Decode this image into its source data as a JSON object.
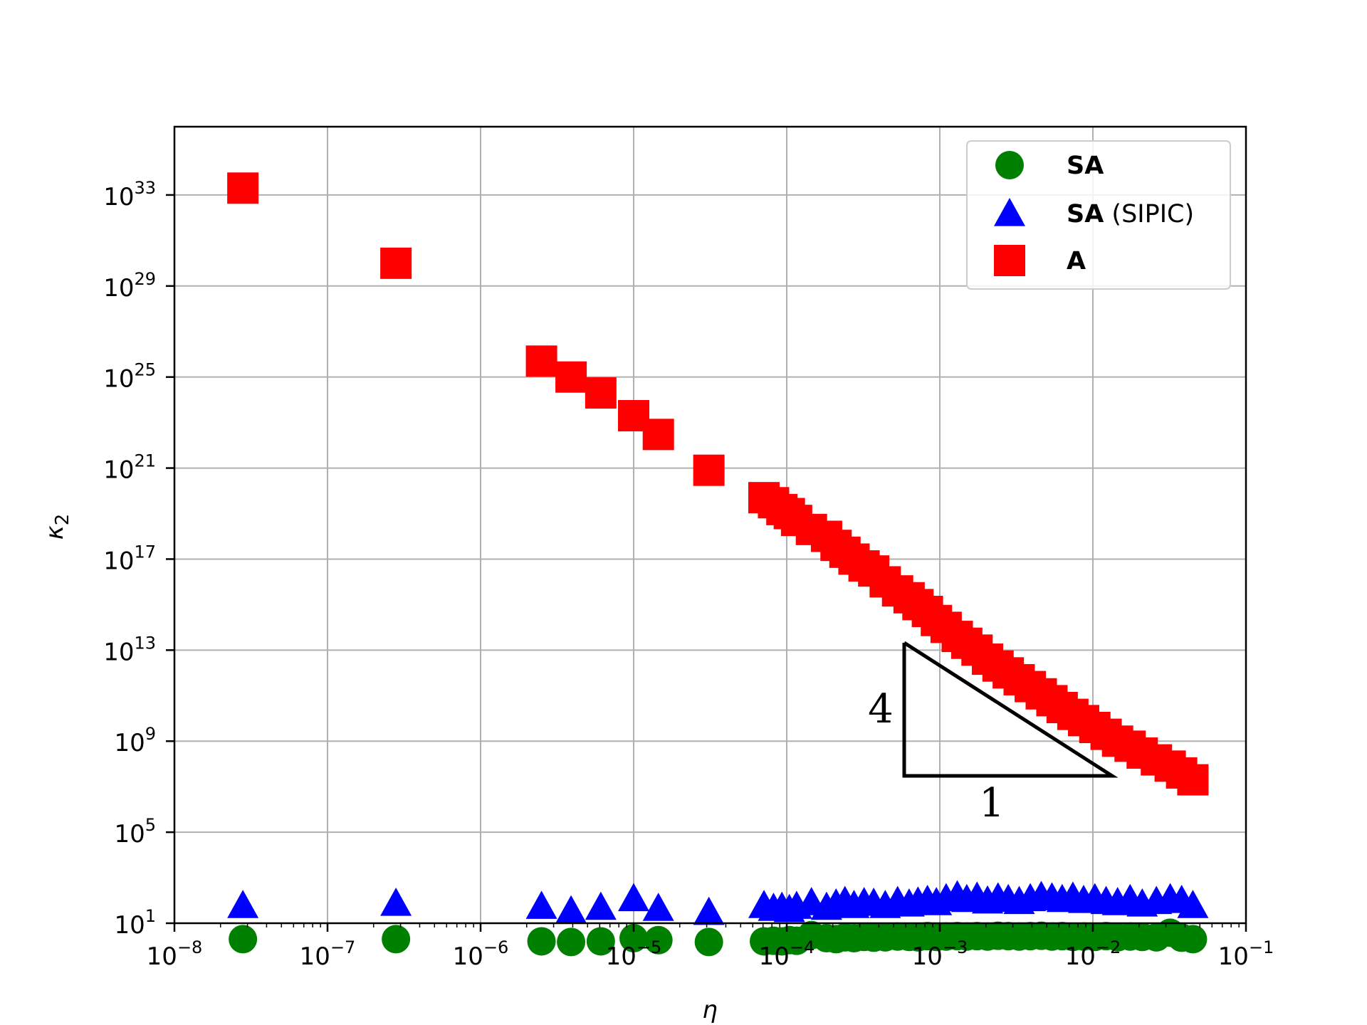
{
  "chart_data": {
    "type": "scatter",
    "xlabel": "η",
    "ylabel": "κ",
    "ylabel_sub": "2",
    "xscale": "log",
    "yscale": "log",
    "xlim": [
      1e-08,
      0.1
    ],
    "ylim": [
      10,
      1e+36
    ],
    "grid": true,
    "legend_position": "top-right",
    "x_ticks": [
      {
        "base": "10",
        "exp": "−8"
      },
      {
        "base": "10",
        "exp": "−7"
      },
      {
        "base": "10",
        "exp": "−6"
      },
      {
        "base": "10",
        "exp": "−5"
      },
      {
        "base": "10",
        "exp": "−4"
      },
      {
        "base": "10",
        "exp": "−3"
      },
      {
        "base": "10",
        "exp": "−2"
      },
      {
        "base": "10",
        "exp": "−1"
      }
    ],
    "y_ticks": [
      {
        "base": "10",
        "exp": "1"
      },
      {
        "base": "10",
        "exp": "5"
      },
      {
        "base": "10",
        "exp": "9"
      },
      {
        "base": "10",
        "exp": "13"
      },
      {
        "base": "10",
        "exp": "17"
      },
      {
        "base": "10",
        "exp": "21"
      },
      {
        "base": "10",
        "exp": "25"
      },
      {
        "base": "10",
        "exp": "29"
      },
      {
        "base": "10",
        "exp": "33"
      }
    ],
    "series": [
      {
        "name": "SA",
        "name_suffix": "",
        "marker": "circle",
        "color": "#008000",
        "x": [
          2.8e-08,
          2.8e-07,
          2.5e-06,
          3.9e-06,
          6.1e-06,
          1e-05,
          1.45e-05,
          3.1e-05,
          7.1e-05,
          8.2e-05,
          9.3e-05,
          0.000104,
          0.000116,
          0.000145,
          0.000182,
          0.00021,
          0.00024,
          0.000275,
          0.00032,
          0.00037,
          0.00044,
          0.00053,
          0.00063,
          0.00072,
          0.00083,
          0.00095,
          0.0011,
          0.0013,
          0.0015,
          0.00175,
          0.00205,
          0.0024,
          0.0028,
          0.0033,
          0.0039,
          0.0046,
          0.0054,
          0.0063,
          0.0074,
          0.0087,
          0.0103,
          0.0122,
          0.0145,
          0.0175,
          0.021,
          0.026,
          0.032,
          0.038,
          0.045
        ],
        "y": [
          2.0,
          2.0,
          1.6,
          1.5,
          1.6,
          2.2,
          1.8,
          1.5,
          1.6,
          1.7,
          1.6,
          1.8,
          1.7,
          3.0,
          2.2,
          2.0,
          2.4,
          2.2,
          2.5,
          2.3,
          2.4,
          2.6,
          2.5,
          2.4,
          2.7,
          2.5,
          2.6,
          2.7,
          2.6,
          2.7,
          2.6,
          2.8,
          2.7,
          2.6,
          2.7,
          2.8,
          2.6,
          2.7,
          2.5,
          2.6,
          2.5,
          2.7,
          2.4,
          2.6,
          2.5,
          2.4,
          3.8,
          2.3,
          2.0
        ]
      },
      {
        "name": "SA",
        "name_suffix": "(SIPIC)",
        "marker": "triangle",
        "color": "#0000ff",
        "x": [
          2.8e-08,
          2.8e-07,
          2.5e-06,
          3.9e-06,
          6.1e-06,
          1e-05,
          1.45e-05,
          3.1e-05,
          7.1e-05,
          8.2e-05,
          9.3e-05,
          0.000104,
          0.000116,
          0.000145,
          0.000182,
          0.00021,
          0.00024,
          0.000275,
          0.00032,
          0.00037,
          0.00044,
          0.00053,
          0.00063,
          0.00072,
          0.00083,
          0.00095,
          0.0011,
          0.0013,
          0.0015,
          0.00175,
          0.00205,
          0.0024,
          0.0028,
          0.0033,
          0.0039,
          0.0046,
          0.0054,
          0.0063,
          0.0074,
          0.0087,
          0.0103,
          0.0122,
          0.0145,
          0.0175,
          0.021,
          0.026,
          0.032,
          0.038,
          0.045
        ],
        "y": [
          60,
          75,
          55,
          35,
          50,
          120,
          45,
          30,
          60,
          45,
          50,
          40,
          55,
          80,
          50,
          70,
          90,
          60,
          80,
          75,
          60,
          90,
          70,
          85,
          100,
          80,
          120,
          160,
          110,
          140,
          95,
          130,
          110,
          90,
          120,
          150,
          130,
          110,
          140,
          100,
          120,
          90,
          80,
          110,
          70,
          90,
          120,
          100,
          60
        ]
      },
      {
        "name": "A",
        "name_suffix": "",
        "marker": "square",
        "color": "#ff0000",
        "x": [
          2.8e-08,
          2.8e-07,
          2.5e-06,
          3.9e-06,
          6.1e-06,
          1e-05,
          1.45e-05,
          3.1e-05,
          7.1e-05,
          8.2e-05,
          9.3e-05,
          0.000104,
          0.000116,
          0.000145,
          0.000182,
          0.00021,
          0.00024,
          0.000275,
          0.00032,
          0.00037,
          0.00044,
          0.00053,
          0.00063,
          0.00072,
          0.00083,
          0.00095,
          0.0011,
          0.0013,
          0.0015,
          0.00175,
          0.00205,
          0.0024,
          0.0028,
          0.0033,
          0.0039,
          0.0046,
          0.0054,
          0.0063,
          0.0074,
          0.0087,
          0.0103,
          0.0122,
          0.0145,
          0.0175,
          0.021,
          0.026,
          0.032,
          0.038,
          0.045
        ],
        "y": [
          2e+33,
          1e+30,
          5e+25,
          1e+25,
          2e+24,
          2e+23,
          3e+22,
          8e+20,
          5e+19,
          3e+19,
          1.5e+19,
          1e+19,
          5e+18,
          2e+18,
          1e+18,
          4e+17,
          2e+17,
          1e+17,
          5e+16,
          3e+16,
          1e+16,
          4000000000000000.0,
          2000000000000000.0,
          1000000000000000.0,
          500000000000000.0,
          200000000000000.0,
          100000000000000.0,
          40000000000000.0,
          20000000000000.0,
          10000000000000.0,
          4000000000000.0,
          2000000000000.0,
          1000000000000.0,
          500000000000.0,
          250000000000.0,
          120000000000.0,
          60000000000.0,
          30000000000.0,
          15000000000.0,
          8000000000.0,
          4000000000.0,
          2000000000.0,
          1000000000.0,
          600000000.0,
          300000000.0,
          150000000.0,
          80000000.0,
          40000000.0,
          20000000.0
        ]
      }
    ],
    "annotation": {
      "type": "slope-triangle",
      "rise_label": "4",
      "run_label": "1"
    }
  }
}
